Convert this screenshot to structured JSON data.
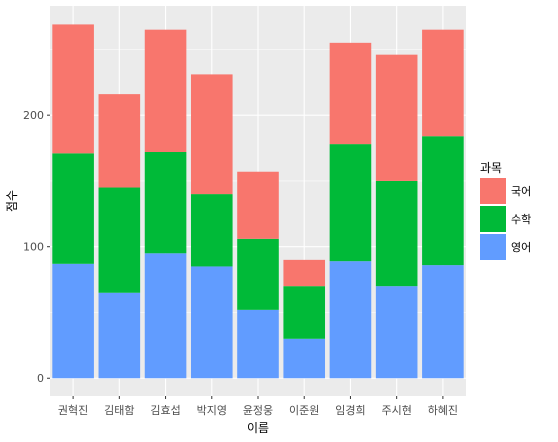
{
  "chart_data": {
    "type": "bar",
    "stacked": true,
    "xlabel": "이름",
    "ylabel": "점수",
    "categories": [
      "권혁진",
      "김태함",
      "김효섭",
      "박지영",
      "윤정웅",
      "이준원",
      "임경희",
      "주시현",
      "하혜진"
    ],
    "series": [
      {
        "name": "영어",
        "color": "#619CFF",
        "values": [
          87,
          65,
          95,
          85,
          52,
          30,
          89,
          70,
          86
        ]
      },
      {
        "name": "수학",
        "color": "#00BA38",
        "values": [
          84,
          80,
          77,
          55,
          54,
          40,
          89,
          80,
          98
        ]
      },
      {
        "name": "국어",
        "color": "#F8766D",
        "values": [
          98,
          71,
          93,
          91,
          51,
          20,
          77,
          96,
          81
        ]
      }
    ],
    "legend": {
      "title": "과목",
      "position": "right",
      "order": [
        "국어",
        "수학",
        "영어"
      ]
    },
    "yticks": [
      0,
      100,
      200
    ],
    "ylim": [
      -13.5,
      283
    ],
    "grid": true,
    "panel_color": "#EBEBEB",
    "grid_color": "#FFFFFF"
  }
}
